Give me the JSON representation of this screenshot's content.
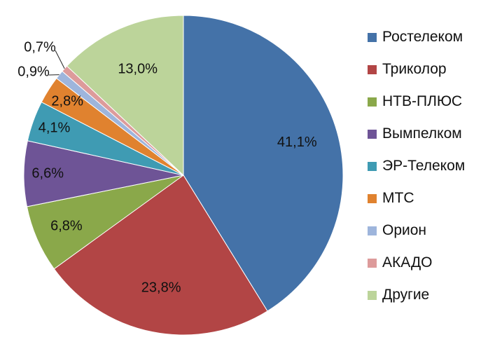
{
  "chart_data": {
    "type": "pie",
    "title": "",
    "categories": [
      "Ростелеком",
      "Триколор",
      "НТВ-ПЛЮС",
      "Вымпелком",
      "ЭР-Телеком",
      "МТС",
      "Орион",
      "АКАДО",
      "Другие"
    ],
    "values": [
      41.1,
      23.8,
      6.8,
      6.6,
      4.1,
      2.8,
      0.9,
      0.7,
      13.0
    ],
    "labels": [
      "41,1%",
      "23,8%",
      "6,8%",
      "6,6%",
      "4,1%",
      "2,8%",
      "0,9%",
      "0,7%",
      "13,0%"
    ],
    "colors": [
      "#4472a8",
      "#b24545",
      "#8aa84a",
      "#6e5496",
      "#3f9bb3",
      "#e0822f",
      "#9eb5dc",
      "#dd9b9b",
      "#bcd49a"
    ],
    "start": "12 o'clock",
    "direction": "clockwise",
    "legend_position": "right"
  }
}
